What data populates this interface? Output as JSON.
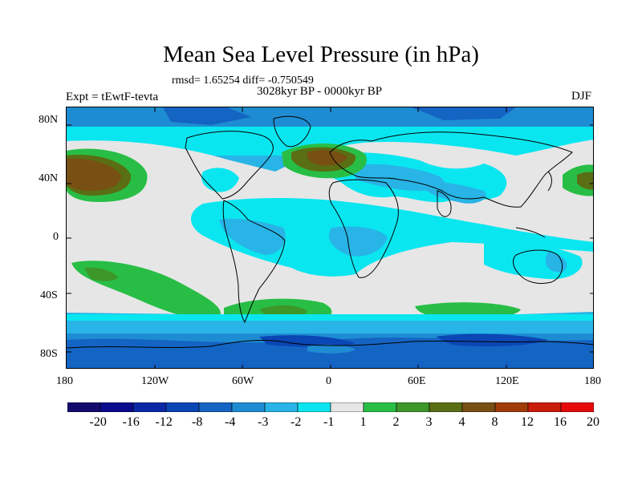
{
  "title": "Mean Sea Level Pressure (in hPa)",
  "stats": "rmsd= 1.65254  diff= -0.750549",
  "period": "3028kyr BP - 0000kyr BP",
  "experiment": "Expt = tEwtF-tevta",
  "season": "DJF",
  "lat_labels": [
    "80N",
    "40N",
    "0",
    "40S",
    "80S"
  ],
  "lon_labels": [
    "180",
    "120W",
    "60W",
    "0",
    "60E",
    "120E",
    "180"
  ],
  "colorbar": {
    "labels": [
      "-20",
      "-16",
      "-12",
      "-8",
      "-4",
      "-3",
      "-2",
      "-1",
      "1",
      "2",
      "3",
      "4",
      "8",
      "12",
      "16",
      "20"
    ],
    "colors": [
      "#140a6e",
      "#0a0a8c",
      "#0a28a5",
      "#0a46b4",
      "#1464c3",
      "#1e8cd2",
      "#28b4e6",
      "#0ae6f0",
      "#e6e6e6",
      "#28be46",
      "#3c9628",
      "#5a6e14",
      "#785014",
      "#a03c0a",
      "#c81e0a",
      "#e60a0a"
    ]
  },
  "chart_data": {
    "type": "heatmap",
    "title": "Mean Sea Level Pressure (in hPa)",
    "variable": "Mean Sea Level Pressure difference",
    "units": "hPa",
    "experiment": "tEwtF-tevta",
    "period": "3028kyr BP - 0000kyr BP",
    "season": "DJF",
    "rmsd": 1.65254,
    "diff": -0.750549,
    "contour_levels": [
      -20,
      -16,
      -12,
      -8,
      -4,
      -3,
      -2,
      -1,
      1,
      2,
      3,
      4,
      8,
      12,
      16,
      20
    ],
    "lon_range": [
      -180,
      180
    ],
    "lat_range": [
      -90,
      90
    ],
    "features": [
      {
        "region": "North Pacific",
        "lon": -150,
        "lat": 42,
        "value": 4
      },
      {
        "region": "Western Europe / North Atlantic",
        "lon": 0,
        "lat": 50,
        "value": 4
      },
      {
        "region": "Northwest Pacific (east of Japan)",
        "lon": 170,
        "lat": 38,
        "value": 3
      },
      {
        "region": "South Pacific",
        "lon": -135,
        "lat": -28,
        "value": 3
      },
      {
        "region": "South Atlantic",
        "lon": -15,
        "lat": -50,
        "value": 3
      },
      {
        "region": "Southern Indian Ocean",
        "lon": 75,
        "lat": -52,
        "value": 2
      },
      {
        "region": "Antarctic coast",
        "lon": 60,
        "lat": -75,
        "value": -4
      },
      {
        "region": "Arctic",
        "lon": 0,
        "lat": 85,
        "value": -3
      }
    ]
  }
}
